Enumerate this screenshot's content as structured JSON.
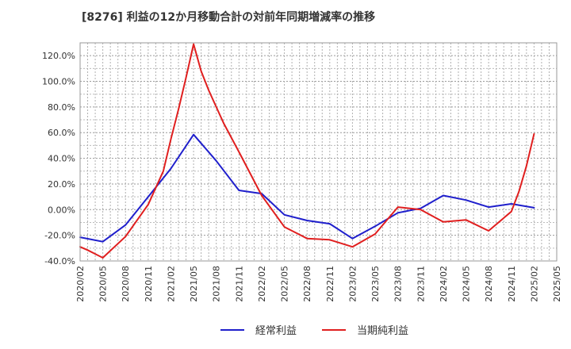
{
  "chart_data": {
    "type": "line",
    "title": "[8276]  利益の12か月移動合計の対前年同期増減率の推移",
    "xlabel": "",
    "ylabel": "",
    "ylim": [
      -40,
      130
    ],
    "y_ticks": [
      -40,
      -20,
      0,
      20,
      40,
      60,
      80,
      100,
      120
    ],
    "y_tick_labels": [
      "-40.0%",
      "-20.0%",
      "0.00%",
      "20.0%",
      "40.0%",
      "60.0%",
      "80.0%",
      "100.0%",
      "120.0%"
    ],
    "categories": [
      "2020/02",
      "2020/05",
      "2020/08",
      "2020/11",
      "2021/02",
      "2021/05",
      "2021/08",
      "2021/11",
      "2022/02",
      "2022/05",
      "2022/08",
      "2022/11",
      "2023/02",
      "2023/05",
      "2023/08",
      "2023/11",
      "2024/02",
      "2024/05",
      "2024/08",
      "2024/11",
      "2025/02",
      "2025/05"
    ],
    "grid": true,
    "legend_position": "bottom-center",
    "series": [
      {
        "name": "経常利益",
        "color": "#1f1fcc",
        "x": [
          "2020/02",
          "2020/05",
          "2020/08",
          "2020/11",
          "2021/02",
          "2021/05",
          "2021/08",
          "2021/11",
          "2022/02",
          "2022/05",
          "2022/08",
          "2022/11",
          "2023/02",
          "2023/05",
          "2023/08",
          "2023/11",
          "2024/02",
          "2024/05",
          "2024/08",
          "2024/11",
          "2025/02"
        ],
        "values": [
          -21.5,
          -25,
          -12,
          10,
          32,
          58.5,
          38,
          15,
          12.5,
          -4,
          -8.5,
          -11,
          -22.5,
          -13,
          -2.5,
          1,
          11,
          7.5,
          2,
          4.5,
          1.5
        ]
      },
      {
        "name": "当期純利益",
        "color": "#e01f1f",
        "x": [
          "2020/02",
          "2020/03",
          "2020/05",
          "2020/08",
          "2020/11",
          "2021/01",
          "2021/02",
          "2021/03",
          "2021/04",
          "2021/05",
          "2021/06",
          "2021/07",
          "2021/08",
          "2021/09",
          "2021/11",
          "2022/02",
          "2022/05",
          "2022/08",
          "2022/11",
          "2023/02",
          "2023/05",
          "2023/08",
          "2023/11",
          "2024/02",
          "2024/05",
          "2024/08",
          "2024/11",
          "2024/12",
          "2025/01",
          "2025/02"
        ],
        "values": [
          -29,
          -31.5,
          -37.5,
          -21,
          4,
          30,
          55,
          78,
          103,
          129,
          108,
          93,
          80,
          67,
          45,
          11,
          -13.5,
          -22.5,
          -23.5,
          -29,
          -19,
          2,
          0,
          -9.5,
          -8,
          -16.5,
          -1.5,
          14,
          34,
          59
        ]
      }
    ]
  }
}
